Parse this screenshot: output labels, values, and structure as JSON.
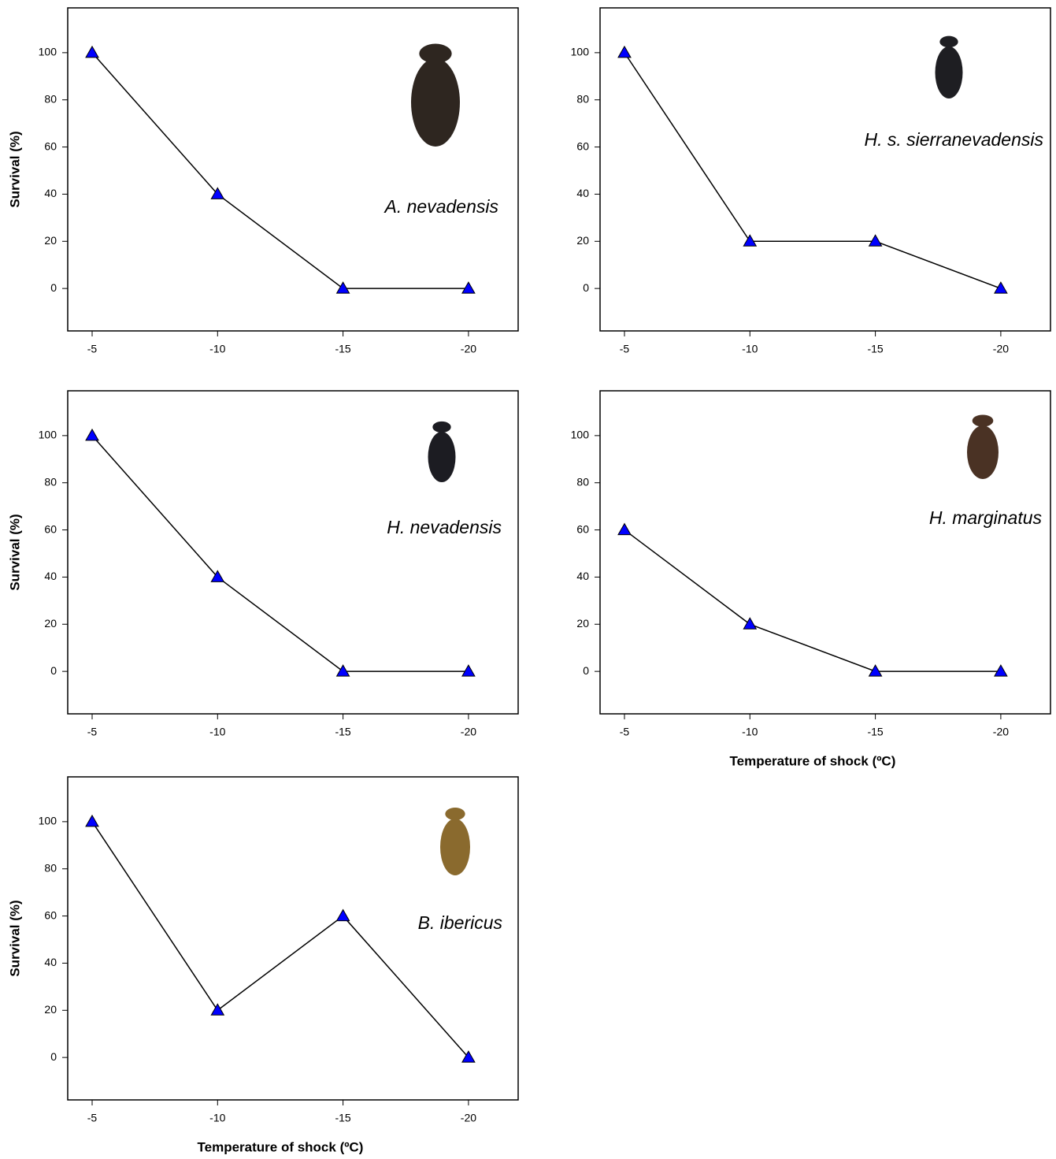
{
  "chart_data": [
    {
      "type": "line",
      "annotation": "A. nevadensis",
      "y_label": "Survival (%)",
      "categories": [
        "-5",
        "-10",
        "-15",
        "-20"
      ],
      "values": [
        100,
        40,
        0,
        0
      ],
      "color": "#000000",
      "marker_color": "#0000ff",
      "ylim": [
        -18,
        119
      ],
      "yticks": [
        0,
        20,
        40,
        60,
        80,
        100
      ]
    },
    {
      "type": "line",
      "annotation": "H. s. sierranevadensis",
      "categories": [
        "-5",
        "-10",
        "-15",
        "-20"
      ],
      "values": [
        100,
        20,
        20,
        0
      ],
      "color": "#000000",
      "marker_color": "#0000ff",
      "ylim": [
        -18,
        119
      ],
      "yticks": [
        0,
        20,
        40,
        60,
        80,
        100
      ]
    },
    {
      "type": "line",
      "annotation": "H. nevadensis",
      "y_label": "Survival (%)",
      "categories": [
        "-5",
        "-10",
        "-15",
        "-20"
      ],
      "values": [
        100,
        40,
        0,
        0
      ],
      "color": "#000000",
      "marker_color": "#0000ff",
      "ylim": [
        -18,
        119
      ],
      "yticks": [
        0,
        20,
        40,
        60,
        80,
        100
      ]
    },
    {
      "type": "line",
      "annotation": "H. marginatus",
      "x_label": "Temperature of shock (ºC)",
      "categories": [
        "-5",
        "-10",
        "-15",
        "-20"
      ],
      "values": [
        60,
        20,
        0,
        0
      ],
      "color": "#000000",
      "marker_color": "#0000ff",
      "ylim": [
        -18,
        119
      ],
      "yticks": [
        0,
        20,
        40,
        60,
        80,
        100
      ]
    },
    {
      "type": "line",
      "annotation": "B. ibericus",
      "y_label": "Survival (%)",
      "x_label": "Temperature of shock (ºC)",
      "categories": [
        "-5",
        "-10",
        "-15",
        "-20"
      ],
      "values": [
        100,
        20,
        60,
        0
      ],
      "color": "#000000",
      "marker_color": "#0000ff",
      "ylim": [
        -18,
        119
      ],
      "yticks": [
        0,
        20,
        40,
        60,
        80,
        100
      ]
    }
  ]
}
